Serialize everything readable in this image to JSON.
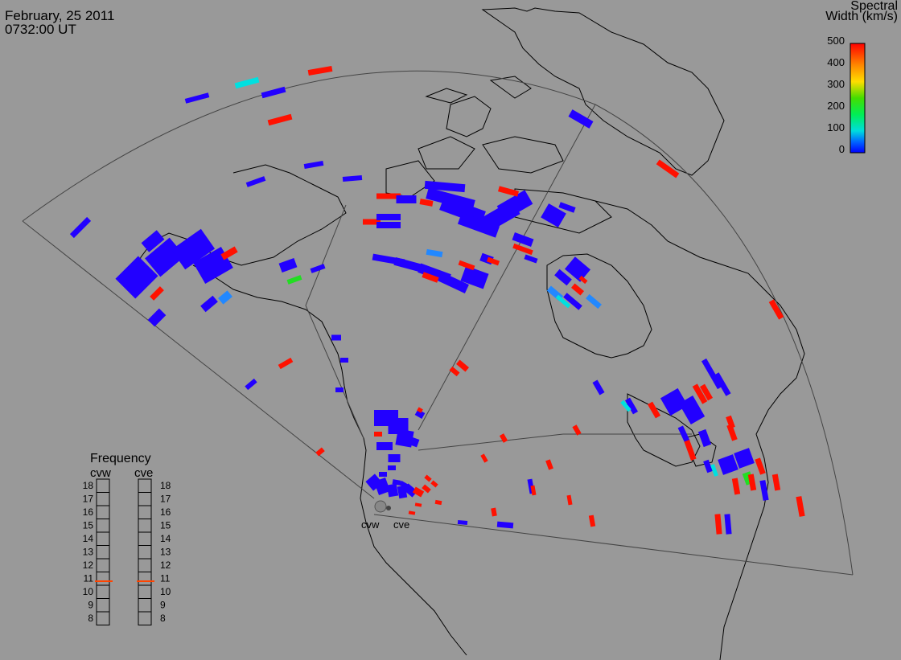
{
  "header": {
    "date": "February, 25 2011",
    "time": "0732:00 UT"
  },
  "colorbar": {
    "title_line1": "Spectral",
    "title_line2": "Width (km/s)",
    "ticks": [
      "500",
      "400",
      "300",
      "200",
      "100",
      "0"
    ]
  },
  "frequency_panel": {
    "title": "Frequency",
    "left_radar": "cvw",
    "right_radar": "cve",
    "scale": [
      "18",
      "17",
      "16",
      "15",
      "14",
      "13",
      "12",
      "11",
      "10",
      "9",
      "8"
    ],
    "left_marker_mhz": 10.8,
    "right_marker_mhz": 10.8,
    "marker_color": "#ff4400"
  },
  "radar_labels": {
    "west": "cvw",
    "east": "cve"
  },
  "colors": {
    "background": "#999999",
    "low": "#2200ff",
    "mid_blue": "#2288ff",
    "cyan": "#00e0e0",
    "green": "#22dd22",
    "high": "#ff1100"
  }
}
